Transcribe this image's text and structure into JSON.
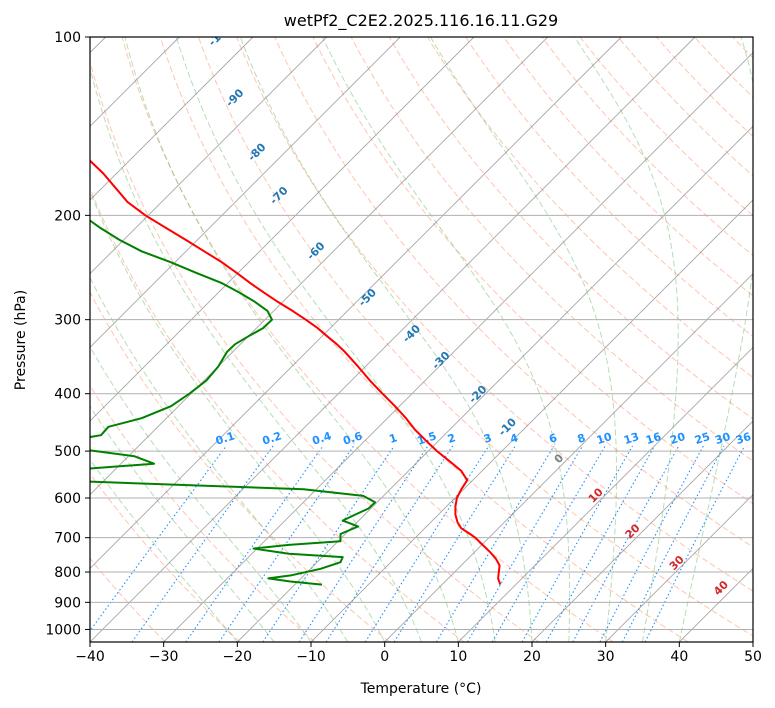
{
  "chart_data": {
    "type": "line",
    "subtype": "skew-T log-P diagram",
    "title": "wetPf2_C2E2.2025.116.16.11.G29",
    "xlabel": "Temperature (°C)",
    "ylabel": "Pressure (hPa)",
    "xlim": [
      -40,
      50
    ],
    "ylim": [
      1050,
      100
    ],
    "yscale": "log",
    "grid": true,
    "x_ticks": [
      -40,
      -30,
      -20,
      -10,
      0,
      10,
      20,
      30,
      40,
      50
    ],
    "y_ticks": [
      100,
      200,
      300,
      400,
      500,
      600,
      700,
      800,
      900,
      1000
    ],
    "colors": {
      "temperature": "#ff0000",
      "dewpoint": "#008000",
      "dry_adiabat": "#ff7f50",
      "moist_adiabat": "#2ca02c",
      "mixing_ratio": "#1e90ff",
      "isotherm": "#808080",
      "theta_e_label": "#1f77b4",
      "iso_label_warm": "#d62728"
    },
    "series": [
      {
        "key": "temperature",
        "points": [
          [
            840,
            15.7
          ],
          [
            820,
            15.4
          ],
          [
            800,
            15.5
          ],
          [
            780,
            15.6
          ],
          [
            760,
            15.1
          ],
          [
            740,
            14.3
          ],
          [
            720,
            13.3
          ],
          [
            700,
            12.3
          ],
          [
            690,
            11.6
          ],
          [
            675,
            10.4
          ],
          [
            660,
            9.9
          ],
          [
            640,
            9.6
          ],
          [
            620,
            9.6
          ],
          [
            600,
            9.8
          ],
          [
            580,
            10.4
          ],
          [
            560,
            11.2
          ],
          [
            540,
            10.4
          ],
          [
            520,
            8.8
          ],
          [
            500,
            7.1
          ],
          [
            480,
            5.6
          ],
          [
            460,
            4.1
          ],
          [
            440,
            2.9
          ],
          [
            420,
            1.4
          ],
          [
            400,
            -0.3
          ],
          [
            380,
            -2.0
          ],
          [
            360,
            -3.6
          ],
          [
            340,
            -5.4
          ],
          [
            330,
            -6.5
          ],
          [
            320,
            -7.8
          ],
          [
            310,
            -9.1
          ],
          [
            300,
            -10.7
          ],
          [
            290,
            -12.5
          ],
          [
            280,
            -14.5
          ],
          [
            270,
            -16.4
          ],
          [
            260,
            -18.3
          ],
          [
            250,
            -20.1
          ],
          [
            240,
            -22.1
          ],
          [
            230,
            -24.5
          ],
          [
            220,
            -27.0
          ],
          [
            210,
            -29.7
          ],
          [
            200,
            -32.5
          ],
          [
            190,
            -34.9
          ],
          [
            180,
            -36.5
          ],
          [
            170,
            -38.2
          ],
          [
            160,
            -40.4
          ],
          [
            150,
            -43.3
          ],
          [
            140,
            -47.0
          ],
          [
            130,
            -51.3
          ],
          [
            120,
            -56.0
          ],
          [
            115,
            -58.2
          ],
          [
            110,
            -59.7
          ],
          [
            105,
            -62.0
          ],
          [
            100,
            -64.0
          ]
        ]
      },
      {
        "key": "dewpoint",
        "points": [
          [
            840,
            -8.5
          ],
          [
            830,
            -12.8
          ],
          [
            820,
            -15.8
          ],
          [
            810,
            -12.6
          ],
          [
            790,
            -8.7
          ],
          [
            770,
            -6.0
          ],
          [
            755,
            -5.7
          ],
          [
            745,
            -13.0
          ],
          [
            730,
            -17.8
          ],
          [
            720,
            -13.0
          ],
          [
            710,
            -6.0
          ],
          [
            690,
            -6.0
          ],
          [
            670,
            -3.6
          ],
          [
            655,
            -5.7
          ],
          [
            640,
            -4.0
          ],
          [
            625,
            -2.2
          ],
          [
            610,
            -1.3
          ],
          [
            595,
            -2.9
          ],
          [
            580,
            -11.0
          ],
          [
            560,
            -45.0
          ],
          [
            535,
            -40.0
          ],
          [
            525,
            -31.3
          ],
          [
            510,
            -34.0
          ],
          [
            495,
            -42.0
          ],
          [
            485,
            -45.0
          ],
          [
            470,
            -38.5
          ],
          [
            455,
            -37.5
          ],
          [
            440,
            -33.0
          ],
          [
            420,
            -29.0
          ],
          [
            400,
            -26.5
          ],
          [
            380,
            -24.2
          ],
          [
            360,
            -22.6
          ],
          [
            350,
            -22.0
          ],
          [
            340,
            -21.4
          ],
          [
            330,
            -20.3
          ],
          [
            320,
            -18.5
          ],
          [
            310,
            -16.5
          ],
          [
            300,
            -15.3
          ],
          [
            290,
            -15.9
          ],
          [
            280,
            -17.6
          ],
          [
            270,
            -19.7
          ],
          [
            260,
            -22.2
          ],
          [
            250,
            -25.6
          ],
          [
            240,
            -29.0
          ],
          [
            230,
            -33.0
          ],
          [
            220,
            -36.0
          ],
          [
            210,
            -38.6
          ],
          [
            200,
            -41.0
          ],
          [
            190,
            -43.5
          ],
          [
            180,
            -46.8
          ],
          [
            170,
            -50.3
          ],
          [
            160,
            -54.0
          ],
          [
            150,
            -57.2
          ],
          [
            140,
            -58.7
          ],
          [
            130,
            -58.6
          ],
          [
            122,
            -58.7
          ],
          [
            115,
            -58.0
          ],
          [
            108,
            -56.4
          ],
          [
            102,
            -54.0
          ],
          [
            100,
            -52.5
          ]
        ]
      }
    ],
    "theta_e_labels": [
      "-100",
      "-90",
      "-80",
      "-70",
      "-60",
      "-50",
      "-40",
      "-30",
      "-20",
      "-10",
      "0",
      "10",
      "20",
      "30",
      "40"
    ],
    "mixing_ratio_labels": [
      "0.1",
      "0.2",
      "0.4",
      "0.6",
      "1",
      "1.5",
      "2",
      "3",
      "4",
      "6",
      "8",
      "10",
      "13",
      "16",
      "20",
      "25",
      "30",
      "36"
    ]
  }
}
